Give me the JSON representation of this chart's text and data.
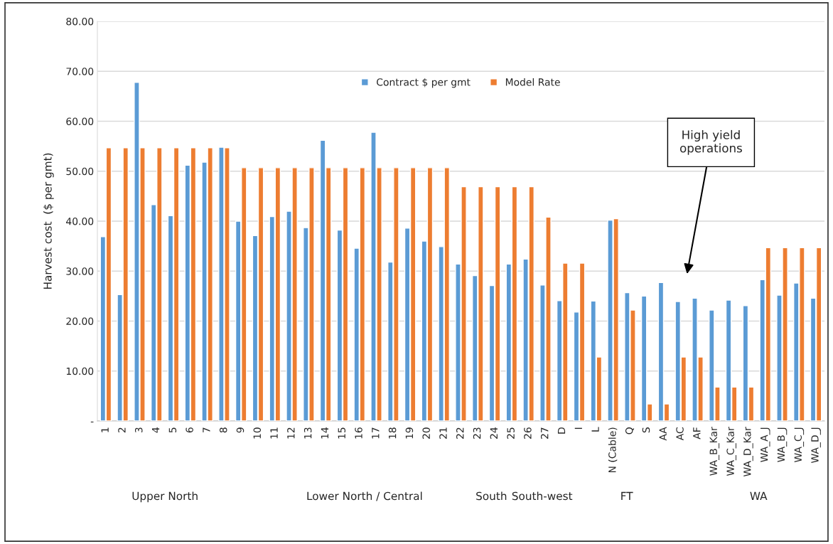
{
  "chart_data": {
    "type": "bar",
    "ylabel": "Harvest cost  ($ per gmt)",
    "categories": [
      "1",
      "2",
      "3",
      "4",
      "5",
      "6",
      "7",
      "8",
      "9",
      "10",
      "11",
      "12",
      "13",
      "14",
      "15",
      "16",
      "17",
      "18",
      "19",
      "20",
      "21",
      "22",
      "23",
      "24",
      "25",
      "26",
      "27",
      "D",
      "I",
      "L",
      "N (Cable)",
      "Q",
      "S",
      "AA",
      "AC",
      "AF",
      "WA_B_Kar",
      "WA_C_Kar",
      "WA_D_Kar",
      "WA_A_J",
      "WA_B_J",
      "WA_C_J",
      "WA_D_J"
    ],
    "series": [
      {
        "name": "Contract $ per gmt",
        "color": "#5b9bd5",
        "values": [
          36.9,
          25.3,
          67.8,
          43.3,
          41.1,
          51.2,
          51.8,
          54.8,
          40.0,
          37.1,
          40.9,
          42.0,
          38.7,
          56.2,
          38.2,
          34.6,
          57.8,
          31.8,
          38.6,
          36.0,
          34.9,
          31.4,
          29.1,
          27.1,
          31.4,
          32.4,
          27.2,
          24.1,
          21.8,
          24.0,
          40.2,
          25.7,
          25.0,
          27.7,
          23.9,
          24.6,
          22.2,
          24.2,
          23.1,
          28.3,
          25.2,
          27.6,
          24.6
        ]
      },
      {
        "name": "Model Rate",
        "color": "#ed7d31",
        "values": [
          54.7,
          54.7,
          54.7,
          54.7,
          54.7,
          54.7,
          54.7,
          54.7,
          50.7,
          50.7,
          50.7,
          50.7,
          50.7,
          50.7,
          50.7,
          50.7,
          50.7,
          50.7,
          50.7,
          50.7,
          50.7,
          46.9,
          46.9,
          46.9,
          46.9,
          46.9,
          40.8,
          31.6,
          31.6,
          12.8,
          40.5,
          22.2,
          3.4,
          3.4,
          12.8,
          12.8,
          6.8,
          6.8,
          6.8,
          34.7,
          34.7,
          34.7,
          34.7
        ]
      }
    ],
    "ylim": [
      0,
      80
    ],
    "yticks": [
      {
        "value": 0,
        "label": "-"
      },
      {
        "value": 10,
        "label": "10.00"
      },
      {
        "value": 20,
        "label": "20.00"
      },
      {
        "value": 30,
        "label": "30.00"
      },
      {
        "value": 40,
        "label": "40.00"
      },
      {
        "value": 50,
        "label": "50.00"
      },
      {
        "value": 60,
        "label": "60.00"
      },
      {
        "value": 70,
        "label": "70.00"
      },
      {
        "value": 80,
        "label": "80.00"
      }
    ],
    "grid": "y",
    "legend": "top",
    "annotations": [
      "Upper North",
      "Lower North / Central",
      "South",
      "South-west",
      "FT",
      "WA",
      "High yield\noperations"
    ]
  }
}
